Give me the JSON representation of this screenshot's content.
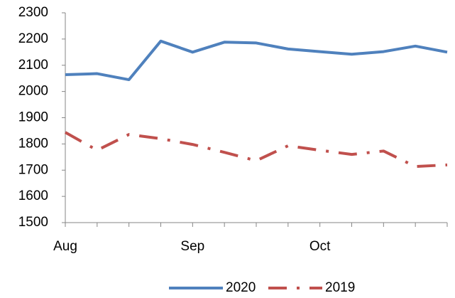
{
  "chart_data": {
    "type": "line",
    "categories": [
      "Aug",
      null,
      null,
      null,
      "Sep",
      null,
      null,
      null,
      "Oct",
      null,
      null,
      null,
      null
    ],
    "series": [
      {
        "name": "2020",
        "color": "#4f81bd",
        "dash": "solid",
        "values": [
          2064,
          2068,
          2045,
          2192,
          2150,
          2188,
          2185,
          2162,
          2152,
          2142,
          2152,
          2173,
          2150
        ]
      },
      {
        "name": "2019",
        "color": "#c0504d",
        "dash": "dashdot",
        "values": [
          1844,
          1776,
          1836,
          1820,
          1798,
          1768,
          1736,
          1793,
          1776,
          1760,
          1773,
          1714,
          1720
        ]
      }
    ],
    "ylim": [
      1500,
      2300
    ],
    "yticks": [
      1500,
      1600,
      1700,
      1800,
      1900,
      2000,
      2100,
      2200,
      2300
    ],
    "grid": false,
    "legend": "bottom"
  }
}
